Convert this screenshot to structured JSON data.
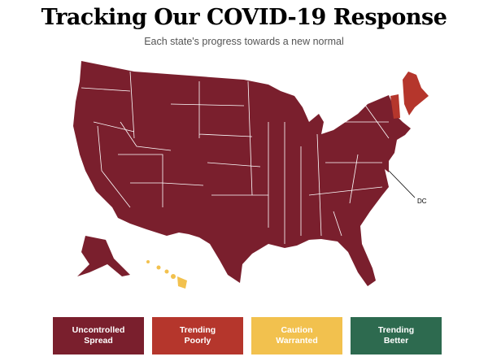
{
  "header": {
    "title": "Tracking Our COVID-19 Response",
    "subtitle": "Each state's progress towards a new normal"
  },
  "map": {
    "annotation": "DC"
  },
  "legend": {
    "items": [
      {
        "label": "Uncontrolled Spread",
        "color": "#7a1f2d"
      },
      {
        "label": "Trending Poorly",
        "color": "#b5362c"
      },
      {
        "label": "Caution Warranted",
        "color": "#f2c14e"
      },
      {
        "label": "Trending Better",
        "color": "#2d6a4f"
      }
    ]
  }
}
